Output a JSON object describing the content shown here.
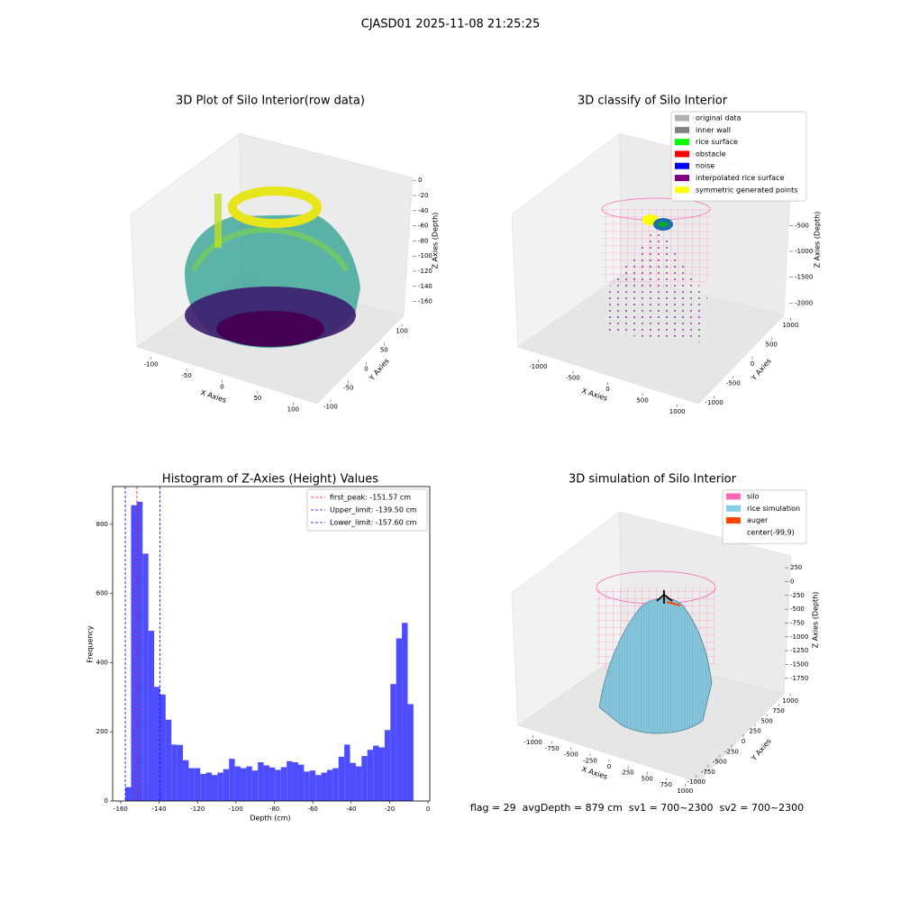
{
  "suptitle": "CJASD01 2025-11-08 21:25:25",
  "footer": "flag = 29  avgDepth = 879 cm  sv1 = 700~2300  sv2 = 700~2300",
  "chart_data": [
    {
      "type": "scatter3d",
      "title": "3D Plot of Silo Interior(row data)",
      "xlabel": "X Axies",
      "ylabel": "Y Axies",
      "zlabel": "Z Axies (Depth)",
      "xlim": [
        -125,
        125
      ],
      "xticks": [
        -100,
        -50,
        0,
        50,
        100
      ],
      "ylim": [
        -125,
        125
      ],
      "yticks": [
        -100,
        -50,
        0,
        50,
        100
      ],
      "zlim": [
        -170,
        5
      ],
      "zticks": [
        0,
        -20,
        -40,
        -60,
        -80,
        -100,
        -120,
        -140,
        -160
      ]
    },
    {
      "type": "scatter3d",
      "title": "3D classify of Silo Interior",
      "xlabel": "X Axies",
      "ylabel": "Y Axies",
      "zlabel": "Z Axies (Depth)",
      "xlim": [
        -1250,
        1250
      ],
      "xticks": [
        -1000,
        -500,
        0,
        500,
        1000
      ],
      "ylim": [
        -1250,
        1250
      ],
      "yticks": [
        -1000,
        -500,
        0,
        500,
        1000
      ],
      "zlim": [
        -2100,
        100
      ],
      "zticks": [
        0,
        -500,
        -1000,
        -1500,
        -2000
      ],
      "legend": [
        {
          "name": "original data",
          "color": "#b0b0b0"
        },
        {
          "name": "inner wall",
          "color": "#808080"
        },
        {
          "name": "rice surface",
          "color": "#00ff00"
        },
        {
          "name": "obstacle",
          "color": "#ff0000"
        },
        {
          "name": "noise",
          "color": "#0000ff"
        },
        {
          "name": "interpolated rice surface",
          "color": "#800080"
        },
        {
          "name": "symmetric generated points",
          "color": "#ffff00"
        }
      ]
    },
    {
      "type": "histogram",
      "title": "Histogram of Z-Axies (Height) Values",
      "xlabel": "Depth (cm)",
      "ylabel": "Frequency",
      "color": "#4d4dff",
      "xlim": [
        -164.2,
        0.9
      ],
      "xticks": [
        -160,
        -140,
        -120,
        -100,
        -80,
        -60,
        -40,
        -20,
        0
      ],
      "ylim": [
        0,
        909
      ],
      "yticks": [
        0,
        200,
        400,
        600,
        800
      ],
      "bins": [
        -157.6,
        -154.6,
        -151.6,
        -148.6,
        -145.6,
        -142.6,
        -139.6,
        -136.6,
        -133.6,
        -130.6,
        -127.6,
        -124.6,
        -121.6,
        -118.6,
        -115.6,
        -112.6,
        -109.6,
        -106.6,
        -103.6,
        -100.6,
        -97.6,
        -94.6,
        -91.6,
        -88.6,
        -85.6,
        -82.6,
        -79.6,
        -76.6,
        -73.6,
        -70.6,
        -67.6,
        -64.6,
        -61.6,
        -58.6,
        -55.6,
        -52.6,
        -49.6,
        -46.6,
        -43.6,
        -40.6,
        -37.6,
        -34.6,
        -31.6,
        -28.6,
        -25.6,
        -22.6,
        -19.6,
        -16.6,
        -13.6,
        -10.6,
        -7.6
      ],
      "counts": [
        40,
        855,
        865,
        715,
        492,
        330,
        308,
        235,
        163,
        162,
        118,
        95,
        95,
        78,
        82,
        75,
        82,
        92,
        122,
        100,
        95,
        100,
        88,
        112,
        103,
        97,
        90,
        98,
        115,
        112,
        105,
        85,
        88,
        75,
        82,
        90,
        95,
        128,
        163,
        110,
        100,
        130,
        148,
        160,
        155,
        205,
        338,
        470,
        515,
        280
      ],
      "lines": [
        {
          "name": "first_peak: -151.57 cm",
          "value": -151.57,
          "color": "#ff0000"
        },
        {
          "name": "Upper_limit: -139.50 cm",
          "value": -139.5,
          "color": "#0000ff"
        },
        {
          "name": "Lower_limit: -157.60 cm",
          "value": -157.6,
          "color": "#0000ff"
        }
      ],
      "legend_loc": "upper right"
    },
    {
      "type": "surface3d",
      "title": "3D simulation of Silo Interior",
      "xlabel": "X Axies",
      "ylabel": "Y Axies",
      "zlabel": "Z Axies (Depth)",
      "xlim": [
        -1150,
        1150
      ],
      "xticks": [
        -1000,
        -750,
        -500,
        -250,
        0,
        250,
        500,
        750,
        1000
      ],
      "ylim": [
        -1150,
        1150
      ],
      "yticks": [
        -1000,
        -750,
        -500,
        -250,
        0,
        250,
        500,
        750,
        1000
      ],
      "zlim": [
        -1850,
        350
      ],
      "zticks": [
        250,
        0,
        -250,
        -500,
        -750,
        -1000,
        -1250,
        -1500,
        -1750
      ],
      "legend": [
        {
          "name": "silo",
          "color": "#ff69b4"
        },
        {
          "name": "rice simulation",
          "color": "#87ceeb"
        },
        {
          "name": "auger",
          "color": "#ff4500"
        },
        {
          "name": "center(-99,9)"
        }
      ]
    }
  ]
}
